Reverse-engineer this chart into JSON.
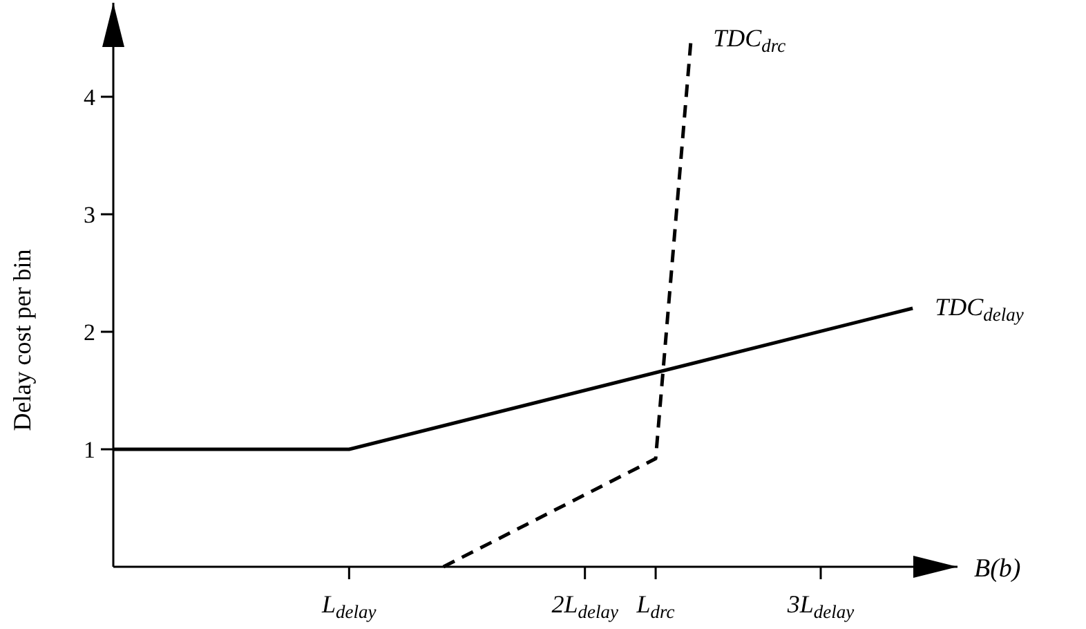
{
  "chart_data": {
    "type": "line",
    "xlabel": "B(b)",
    "ylabel": "Delay cost per bin",
    "xlim": [
      0,
      3.58
    ],
    "ylim": [
      0,
      4.8
    ],
    "xticks": [
      {
        "value": 1,
        "label": "L$_{delay}$"
      },
      {
        "value": 2,
        "label": "2L$_{delay}$"
      },
      {
        "value": 2.3,
        "label": "L$_{drc}$"
      },
      {
        "value": 3,
        "label": "3L$_{delay}$"
      }
    ],
    "yticks": [
      1,
      2,
      3,
      4
    ],
    "series": [
      {
        "name": "TDC$_{delay}$",
        "color": "#000000",
        "line_style": "solid",
        "x": [
          0,
          1,
          3.39
        ],
        "values": [
          1,
          1,
          2.2
        ]
      },
      {
        "name": "TDC$_{drc}$",
        "color": "#000000",
        "line_style": "dashed",
        "x": [
          1.4,
          2.3,
          2.45
        ],
        "values": [
          0,
          0.92,
          4.49
        ]
      }
    ],
    "grid": false,
    "legend": false,
    "marker": "none"
  }
}
